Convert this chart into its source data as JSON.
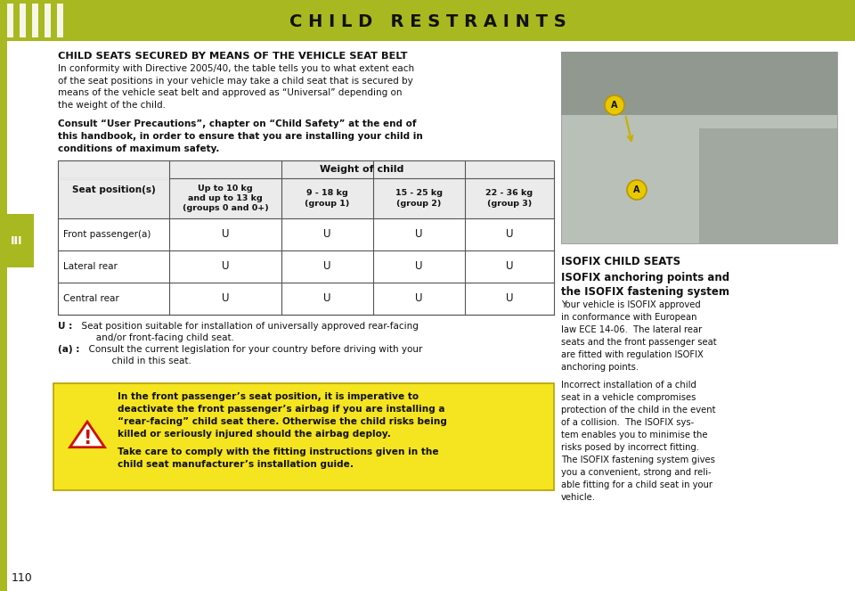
{
  "title": "C H I L D   R E S T R A I N T S",
  "title_bg": "#a8b820",
  "title_color": "#111111",
  "page_bg": "#ffffff",
  "stripe_color": "#d4e04a",
  "left_bar_color": "#a8b820",
  "section_label": "III",
  "page_number": "110",
  "heading": "CHILD SEATS SECURED BY MEANS OF THE VEHICLE SEAT BELT",
  "para1": "In conformity with Directive 2005/40, the table tells you to what extent each\nof the seat positions in your vehicle may take a child seat that is secured by\nmeans of the vehicle seat belt and approved as “Universal” depending on\nthe weight of the child.",
  "para2": "Consult “User Precautions”, chapter on “Child Safety” at the end of\nthis handbook, in order to ensure that you are installing your child in\nconditions of maximum safety.",
  "table_header_top": "Weight of child",
  "table_col0_header": "Seat position(s)",
  "table_col1_header": "Up to 10 kg\nand up to 13 kg\n(groups 0 and 0+)",
  "table_col2_header": "9 - 18 kg\n(group 1)",
  "table_col3_header": "15 - 25 kg\n(group 2)",
  "table_col4_header": "22 - 36 kg\n(group 3)",
  "table_rows": [
    [
      "Front passenger(a)",
      "U",
      "U",
      "U",
      "U"
    ],
    [
      "Lateral rear",
      "U",
      "U",
      "U",
      "U"
    ],
    [
      "Central rear",
      "U",
      "U",
      "U",
      "U"
    ]
  ],
  "note_u_bold": "U :",
  "note_u_rest": "  Seat position suitable for installation of universally approved rear-facing\n       and/or front-facing child seat.",
  "note_a_bold": "(a) :",
  "note_a_rest": "  Consult the current legislation for your country before driving with your\n          child in this seat.",
  "warning_bold1": "In the front passenger’s seat position, it is imperative to",
  "warning_bold2": "deactivate the front passenger’s airbag if you are installing a",
  "warning_bold3": "“rear-facing” child seat there. Otherwise the child risks being",
  "warning_bold4": "killed or seriously injured should the airbag deploy.",
  "warning_norm1": "Take care to comply with the fitting instructions given in the",
  "warning_norm2": "child seat manufacturer’s installation guide.",
  "warning_bg": "#f5e420",
  "warning_border": "#b8a000",
  "right_heading1": "ISOFIX CHILD SEATS",
  "right_heading2": "ISOFIX anchoring points and\nthe ISOFIX fastening system",
  "right_para1": "Your vehicle is ISOFIX approved\nin conformance with European\nlaw ECE 14-06.  The lateral rear\nseats and the front passenger seat\nare fitted with regulation ISOFIX\nanchoring points.",
  "right_para2": "Incorrect installation of a child\nseat in a vehicle compromises\nprotection of the child in the event\nof a collision.  The ISOFIX sys-\ntem enables you to minimise the\nrisks posed by incorrect fitting.\nThe ISOFIX fastening system gives\nyou a convenient, strong and reli-\nable fitting for a child seat in your\nvehicle.",
  "photo_bg": "#b8c0b8",
  "photo_dark": "#909890",
  "marker_bg": "#e8c800",
  "marker_border": "#b89600"
}
